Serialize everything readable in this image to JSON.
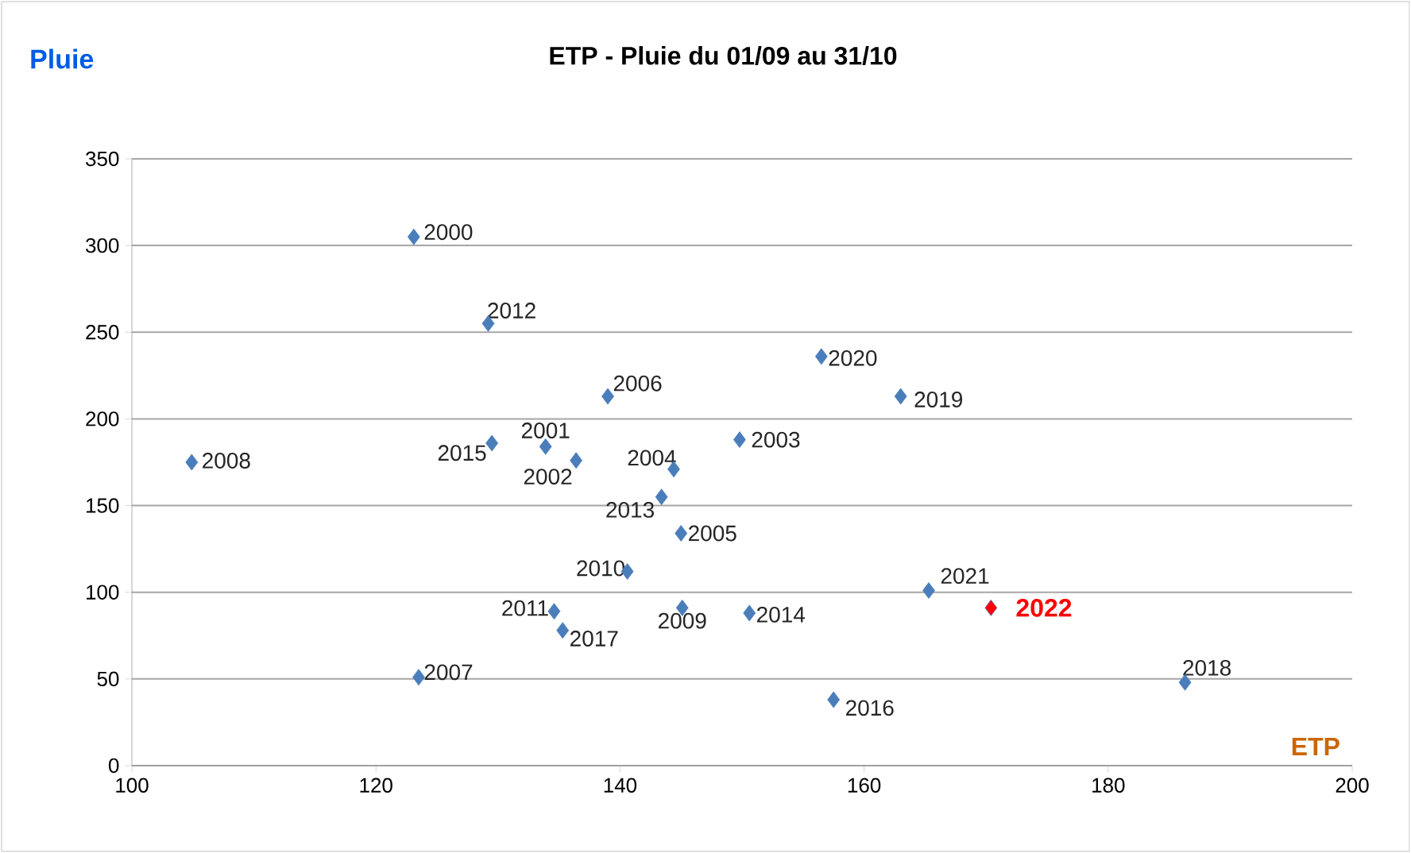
{
  "chart_data": {
    "type": "scatter",
    "title": "ETP - Pluie du 01/09 au 31/10",
    "xlabel": "ETP",
    "ylabel": "Pluie",
    "xlim": [
      100,
      200
    ],
    "xticks": [
      100,
      120,
      140,
      160,
      180,
      200
    ],
    "ylim": [
      0,
      350
    ],
    "yticks": [
      0,
      50,
      100,
      150,
      200,
      250,
      300,
      350
    ],
    "grid": "y",
    "marker": "diamond",
    "series": [
      {
        "color": "#4a7ebb",
        "x": [
          123.1,
          129.2,
          139.0,
          133.9,
          129.5,
          136.4,
          144.4,
          143.4,
          145.0,
          140.6,
          134.6,
          135.3,
          145.1,
          123.5,
          104.9,
          149.8,
          150.6,
          156.5,
          163.0,
          157.5,
          165.3,
          186.3
        ],
        "values": [
          305,
          255,
          213,
          184,
          186,
          176,
          171,
          155,
          134,
          112,
          89,
          78,
          91,
          51,
          175,
          188,
          88,
          236,
          213,
          38,
          101,
          48
        ]
      },
      {
        "name": "2022",
        "color": "#ff0000",
        "x": [
          170.4
        ],
        "values": [
          91
        ]
      }
    ],
    "annotations": [
      {
        "text": "2000",
        "x": 123.1,
        "y": 305
      },
      {
        "text": "2012",
        "x": 129.2,
        "y": 255
      },
      {
        "text": "2006",
        "x": 139.0,
        "y": 213
      },
      {
        "text": "2001",
        "x": 133.9,
        "y": 184
      },
      {
        "text": "2015",
        "x": 129.5,
        "y": 186
      },
      {
        "text": "2002",
        "x": 136.4,
        "y": 176
      },
      {
        "text": "2004",
        "x": 144.4,
        "y": 171
      },
      {
        "text": "2013",
        "x": 143.4,
        "y": 155
      },
      {
        "text": "2005",
        "x": 145.0,
        "y": 134
      },
      {
        "text": "2010",
        "x": 140.6,
        "y": 112
      },
      {
        "text": "2011",
        "x": 134.6,
        "y": 89
      },
      {
        "text": "2017",
        "x": 135.3,
        "y": 78
      },
      {
        "text": "2009",
        "x": 145.1,
        "y": 91
      },
      {
        "text": "2007",
        "x": 123.5,
        "y": 51
      },
      {
        "text": "2008",
        "x": 104.9,
        "y": 175
      },
      {
        "text": "2003",
        "x": 149.8,
        "y": 188
      },
      {
        "text": "2014",
        "x": 150.6,
        "y": 88
      },
      {
        "text": "2020",
        "x": 156.5,
        "y": 236
      },
      {
        "text": "2019",
        "x": 163.0,
        "y": 213
      },
      {
        "text": "2016",
        "x": 157.5,
        "y": 38
      },
      {
        "text": "2021",
        "x": 165.3,
        "y": 101
      },
      {
        "text": "2018",
        "x": 186.3,
        "y": 48
      }
    ]
  }
}
